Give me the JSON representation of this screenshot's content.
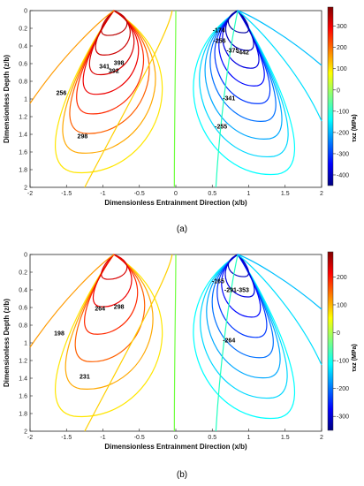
{
  "chart_data": [
    {
      "type": "contour",
      "caption": "(a)",
      "xlabel": "Dimensionless Entrainment Direction (x/b)",
      "ylabel": "Dimensionless Depth (z/b)",
      "xlim": [
        -2,
        2
      ],
      "ylim": [
        0,
        2
      ],
      "y_reversed": true,
      "xticks": [
        "-2",
        "-1.5",
        "-1",
        "-0.5",
        "0",
        "0.5",
        "1",
        "1.5",
        "2"
      ],
      "yticks": [
        "0",
        "0.2",
        "0.4",
        "0.6",
        "0.8",
        "1",
        "1.2",
        "1.4",
        "1.6",
        "1.8",
        "2"
      ],
      "colorbar_label": "τxz (MPa)",
      "colorbar_range": [
        -450,
        390
      ],
      "colorbar_ticks": [
        "300",
        "200",
        "100",
        "0",
        "-100",
        "-200",
        "-300",
        "-400"
      ],
      "contour_labels": [
        {
          "text": "298",
          "x": -1.28,
          "z": 1.42
        },
        {
          "text": "256",
          "x": -1.57,
          "z": 0.93
        },
        {
          "text": "341",
          "x": -0.98,
          "z": 0.63
        },
        {
          "text": "392",
          "x": -0.85,
          "z": 0.68
        },
        {
          "text": "398",
          "x": -0.78,
          "z": 0.59
        },
        {
          "text": "-255",
          "x": 0.62,
          "z": 1.31
        },
        {
          "text": "-341",
          "x": 0.73,
          "z": 0.99
        },
        {
          "text": "-375",
          "x": 0.78,
          "z": 0.45
        },
        {
          "text": "-442",
          "x": 0.92,
          "z": 0.47
        },
        {
          "text": "-256",
          "x": 0.6,
          "z": 0.34
        },
        {
          "text": "-174",
          "x": 0.59,
          "z": 0.22
        }
      ]
    },
    {
      "type": "contour",
      "caption": "(b)",
      "xlabel": "Dimensionless Entrainment Direction (x/b)",
      "ylabel": "Dimensionless Depth (z/b)",
      "xlim": [
        -2,
        2
      ],
      "ylim": [
        0,
        2
      ],
      "y_reversed": true,
      "xticks": [
        "-2",
        "-1.5",
        "-1",
        "-0.5",
        "0",
        "0.5",
        "1",
        "1.5",
        "2"
      ],
      "yticks": [
        "0",
        "0.2",
        "0.4",
        "0.6",
        "0.8",
        "1",
        "1.2",
        "1.4",
        "1.6",
        "1.8",
        "2"
      ],
      "colorbar_label": "τxz (MPa)",
      "colorbar_range": [
        -350,
        290
      ],
      "colorbar_ticks": [
        "200",
        "100",
        "0",
        "-100",
        "-200",
        "-300"
      ],
      "contour_labels": [
        {
          "text": "231",
          "x": -1.25,
          "z": 1.38
        },
        {
          "text": "198",
          "x": -1.6,
          "z": 0.89
        },
        {
          "text": "264",
          "x": -1.04,
          "z": 0.61
        },
        {
          "text": "298",
          "x": -0.78,
          "z": 0.59
        },
        {
          "text": "-264",
          "x": 0.73,
          "z": 0.97
        },
        {
          "text": "-291",
          "x": 0.75,
          "z": 0.4
        },
        {
          "text": "-353",
          "x": 0.92,
          "z": 0.4
        },
        {
          "text": "-165",
          "x": 0.58,
          "z": 0.3
        }
      ]
    }
  ]
}
